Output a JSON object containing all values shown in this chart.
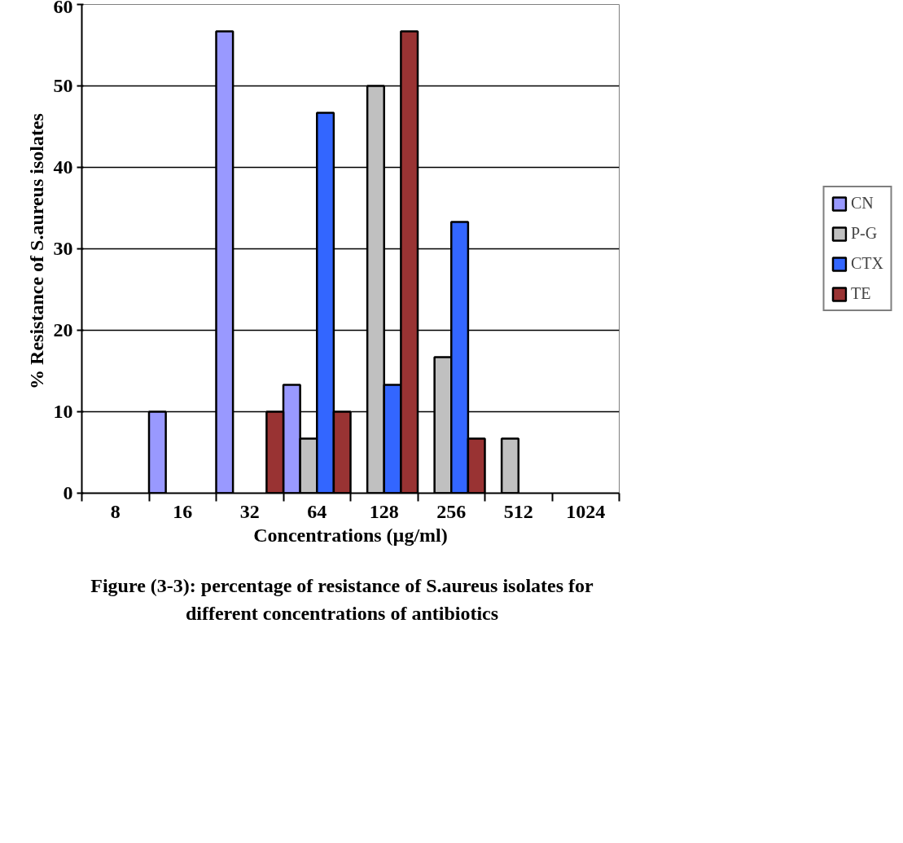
{
  "chart_data": {
    "type": "bar",
    "xlabel": "Concentrations (µg/ml)",
    "ylabel": "% Resistance of S.aureus  isolates",
    "categories": [
      "8",
      "16",
      "32",
      "64",
      "128",
      "256",
      "512",
      "1024"
    ],
    "series": [
      {
        "name": "CN",
        "color": "#9999ff",
        "values": [
          0,
          10,
          56.7,
          13.3,
          0,
          0,
          0,
          0
        ]
      },
      {
        "name": "P-G",
        "color": "#c0c0c0",
        "values": [
          0,
          0,
          0,
          6.7,
          50,
          16.7,
          6.7,
          0
        ]
      },
      {
        "name": "CTX",
        "color": "#3366ff",
        "values": [
          0,
          0,
          0,
          46.7,
          13.3,
          33.3,
          0,
          0
        ]
      },
      {
        "name": "TE",
        "color": "#993333",
        "values": [
          0,
          0,
          10,
          10,
          56.7,
          6.7,
          0,
          0
        ]
      }
    ],
    "ylim": [
      0,
      60
    ],
    "yticks": [
      0,
      10,
      20,
      30,
      40,
      50,
      60
    ],
    "grid": "y",
    "legend": "right",
    "annotations": [
      "Figure (3-3): percentage of resistance of S.aureus isolates for different concentrations of antibiotics"
    ]
  }
}
